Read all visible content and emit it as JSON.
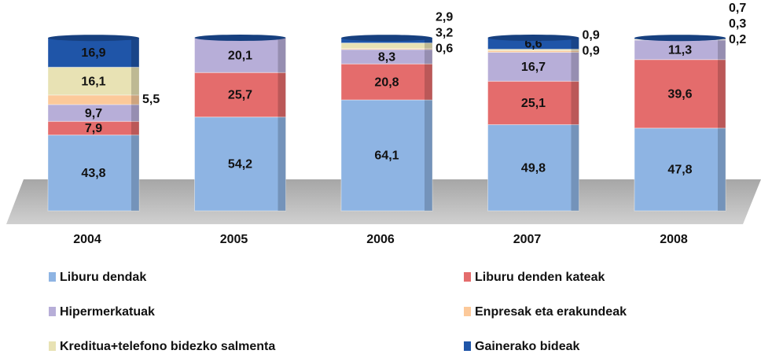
{
  "chart_data": {
    "type": "stacked_bar",
    "categories": [
      "2004",
      "2005",
      "2006",
      "2007",
      "2008"
    ],
    "ylim": [
      0,
      100
    ],
    "series": [
      {
        "name": "Liburu dendak",
        "color": "#8eb4e3",
        "values": [
          43.8,
          54.2,
          64.1,
          49.8,
          47.8
        ],
        "value_labels": [
          "43,8",
          "54,2",
          "64,1",
          "49,8",
          "47,8"
        ]
      },
      {
        "name": "Liburu denden kateak",
        "color": "#e46c6c",
        "values": [
          7.9,
          25.7,
          20.8,
          25.1,
          39.6
        ],
        "value_labels": [
          "7,9",
          "25,7",
          "20,8",
          "25,1",
          "39,6"
        ]
      },
      {
        "name": "Hipermerkatuak",
        "color": "#b7aed8",
        "values": [
          9.7,
          20.1,
          8.3,
          16.7,
          11.3
        ],
        "value_labels": [
          "9,7",
          "20,1",
          "8,3",
          "16,7",
          "11,3"
        ]
      },
      {
        "name": "Enpresak eta erakundeak",
        "color": "#fcc99a",
        "values": [
          5.5,
          null,
          0.6,
          0.9,
          0.2
        ],
        "value_labels": [
          "5,5",
          null,
          "0,6",
          "0,9",
          "0,2"
        ]
      },
      {
        "name": "Kreditua+telefono bidezko salmenta",
        "color": "#e8e2b4",
        "values": [
          16.1,
          null,
          3.2,
          0.9,
          0.3
        ],
        "value_labels": [
          "16,1",
          null,
          "3,2",
          "0,9",
          "0,3"
        ]
      },
      {
        "name": "Gainerako bideak",
        "color": "#1f55a8",
        "values": [
          16.9,
          null,
          2.9,
          6.6,
          0.7
        ],
        "value_labels": [
          "16,9",
          null,
          "2,9",
          "6,6",
          "0,7"
        ]
      }
    ]
  }
}
